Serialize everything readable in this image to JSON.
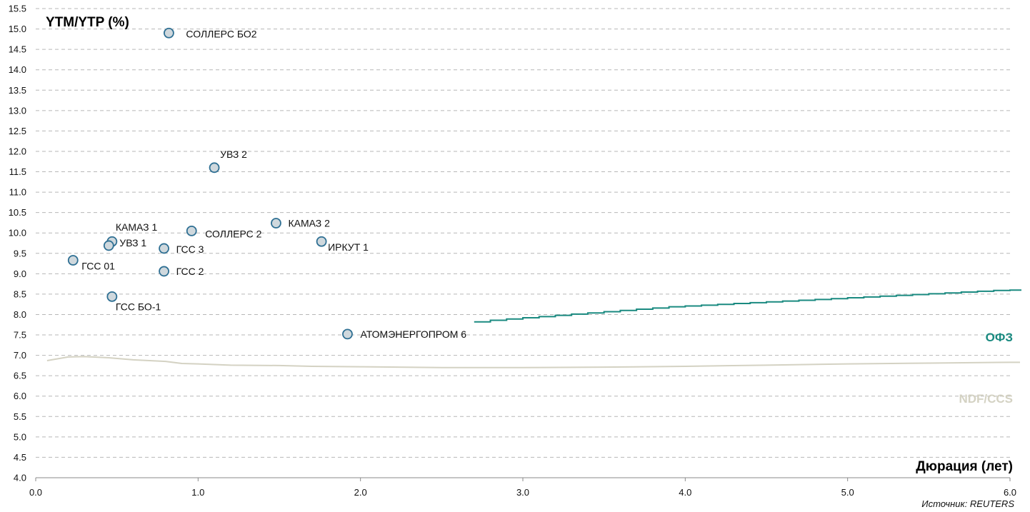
{
  "chart_data": {
    "type": "scatter",
    "ylabel": "YTM/YTP (%)",
    "xlabel": "Дюрация (лет)",
    "source": "Источник: REUTERS",
    "xlim": [
      0,
      6
    ],
    "ylim": [
      4,
      15.5
    ],
    "x_ticks": [
      "0.0",
      "1.0",
      "2.0",
      "3.0",
      "4.0",
      "5.0",
      "6.0"
    ],
    "y_ticks": [
      "4.0",
      "4.5",
      "5.0",
      "5.5",
      "6.0",
      "6.5",
      "7.0",
      "7.5",
      "8.0",
      "8.5",
      "9.0",
      "9.5",
      "10.0",
      "10.5",
      "11.0",
      "11.5",
      "12.0",
      "12.5",
      "13.0",
      "13.5",
      "14.0",
      "14.5",
      "15.0",
      "15.5"
    ],
    "grid": "horizontal dashed",
    "points": [
      {
        "label": "СОЛЛЕРС БО2",
        "x": 0.82,
        "y": 14.9
      },
      {
        "label": "УВЗ 2",
        "x": 1.1,
        "y": 11.6
      },
      {
        "label": "КАМАЗ 2",
        "x": 1.48,
        "y": 10.24
      },
      {
        "label": "СОЛЛЕРС 2",
        "x": 0.96,
        "y": 10.05
      },
      {
        "label": "КАМАЗ 1",
        "x": 0.47,
        "y": 9.79
      },
      {
        "label": "УВЗ 1",
        "x": 0.45,
        "y": 9.69
      },
      {
        "label": "ИРКУТ 1",
        "x": 1.76,
        "y": 9.79
      },
      {
        "label": "ГСС 3",
        "x": 0.79,
        "y": 9.62
      },
      {
        "label": "ГСС 01",
        "x": 0.23,
        "y": 9.33
      },
      {
        "label": "ГСС 2",
        "x": 0.79,
        "y": 9.06
      },
      {
        "label": "ГСС БО-1",
        "x": 0.47,
        "y": 8.44
      },
      {
        "label": "АТОМЭНЕРГОПРОМ 6",
        "x": 1.92,
        "y": 7.52
      }
    ],
    "series": [
      {
        "name": "ОФЗ",
        "color": "#1a8a80",
        "x": [
          2.7,
          2.8,
          2.9,
          3.0,
          3.1,
          3.2,
          3.3,
          3.4,
          3.5,
          3.6,
          3.7,
          3.8,
          3.9,
          4.0,
          4.1,
          4.2,
          4.3,
          4.4,
          4.5,
          4.6,
          4.7,
          4.8,
          4.9,
          5.0,
          5.1,
          5.2,
          5.3,
          5.4,
          5.5,
          5.6,
          5.7,
          5.8,
          5.9,
          6.0
        ],
        "values": [
          7.82,
          7.86,
          7.89,
          7.92,
          7.95,
          7.98,
          8.01,
          8.04,
          8.07,
          8.1,
          8.13,
          8.16,
          8.19,
          8.21,
          8.23,
          8.25,
          8.27,
          8.29,
          8.31,
          8.33,
          8.35,
          8.37,
          8.39,
          8.41,
          8.43,
          8.45,
          8.47,
          8.49,
          8.51,
          8.53,
          8.55,
          8.57,
          8.59,
          8.6
        ]
      },
      {
        "name": "NDF/CCS",
        "color": "#d4d2c3",
        "x": [
          0.07,
          0.2,
          0.3,
          0.45,
          0.6,
          0.8,
          0.9,
          1.0,
          1.2,
          1.5,
          1.7,
          2.0,
          2.5,
          3.0,
          3.5,
          4.0,
          4.5,
          5.0,
          5.5,
          6.0
        ],
        "values": [
          6.87,
          6.96,
          6.97,
          6.94,
          6.89,
          6.85,
          6.8,
          6.79,
          6.76,
          6.75,
          6.73,
          6.72,
          6.7,
          6.7,
          6.71,
          6.73,
          6.76,
          6.79,
          6.81,
          6.83
        ]
      }
    ]
  },
  "colors": {
    "point_fill": "#cfd8dd",
    "point_stroke": "#2e6f93",
    "grid": "#b7b7b7",
    "axis": "#8a8a8a"
  }
}
